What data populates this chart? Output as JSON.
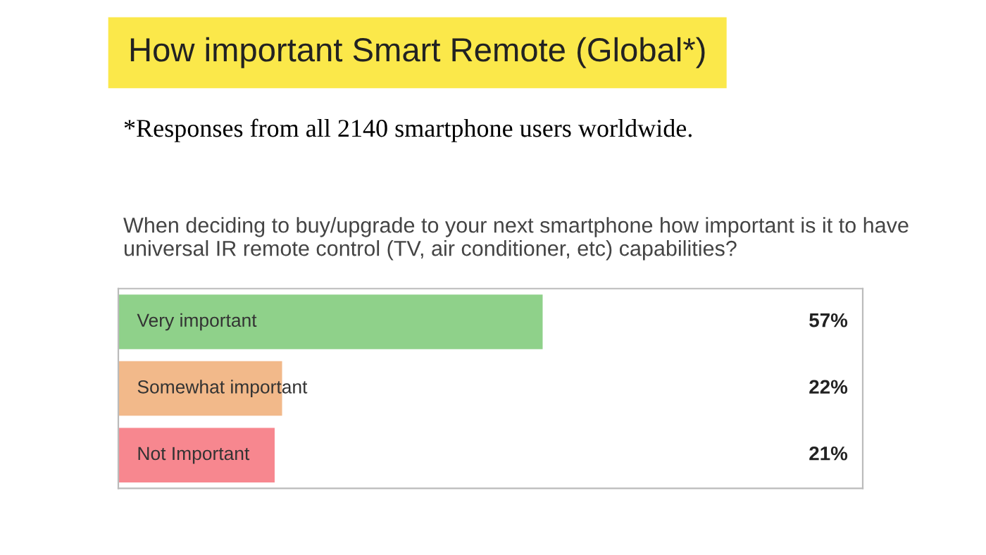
{
  "chart_data": {
    "type": "bar",
    "orientation": "horizontal",
    "title": "How important Smart Remote (Global*)",
    "subtitle": "*Responses from all 2140 smartphone users worldwide.",
    "annotations": [
      "When deciding to buy/upgrade to your next smartphone how important is it to have universal IR remote control (TV, air conditioner, etc) capabilities?"
    ],
    "categories": [
      "Very important",
      "Somewhat important",
      "Not Important"
    ],
    "values": [
      57,
      22,
      21
    ],
    "colors": [
      "#8fd18a",
      "#f2b98a",
      "#f7878f"
    ],
    "value_labels": [
      "57%",
      "22%",
      "21%"
    ],
    "xlim": [
      0,
      100
    ]
  }
}
